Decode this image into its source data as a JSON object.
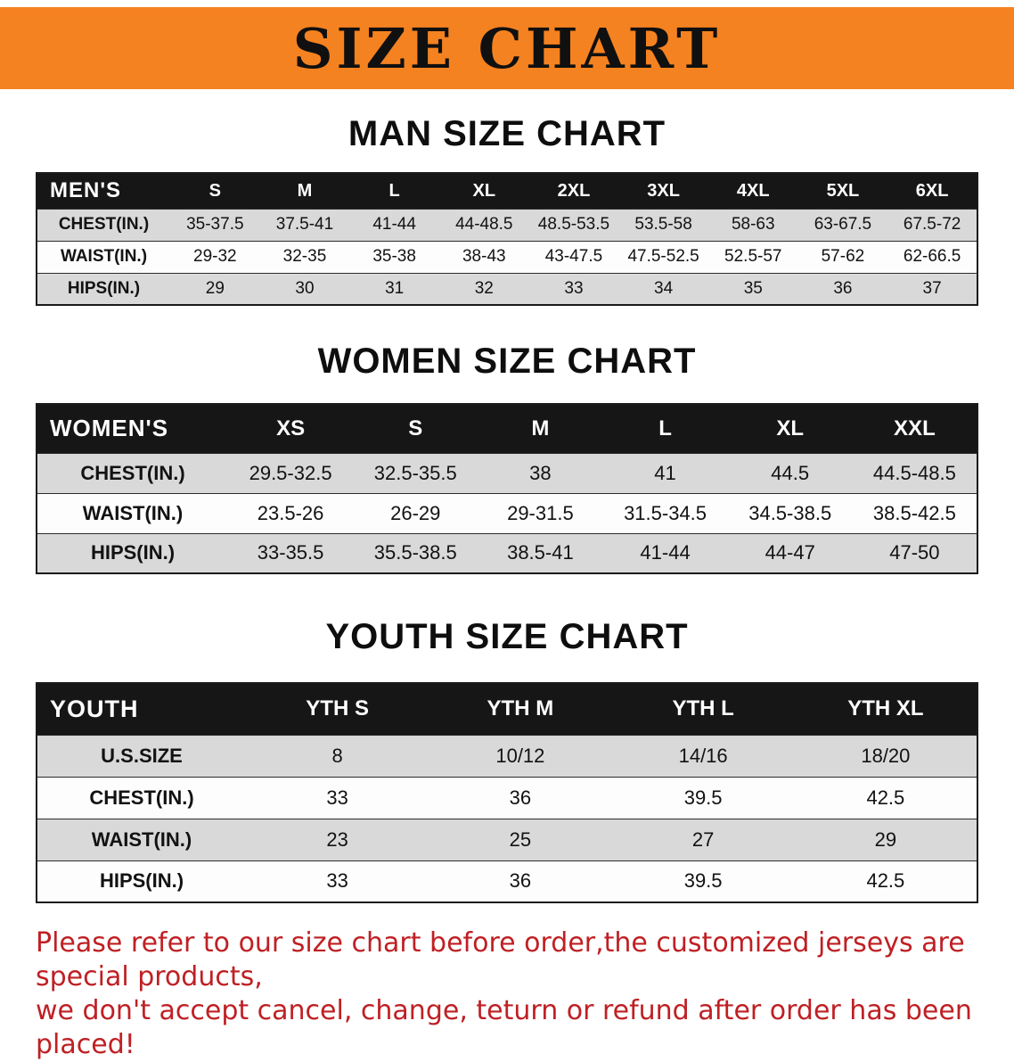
{
  "banner": {
    "title": "SIZE CHART"
  },
  "men": {
    "heading": "MAN SIZE CHART",
    "table": {
      "header": [
        "MEN'S",
        "S",
        "M",
        "L",
        "XL",
        "2XL",
        "3XL",
        "4XL",
        "5XL",
        "6XL"
      ],
      "rows": [
        [
          "CHEST(IN.)",
          "35-37.5",
          "37.5-41",
          "41-44",
          "44-48.5",
          "48.5-53.5",
          "53.5-58",
          "58-63",
          "63-67.5",
          "67.5-72"
        ],
        [
          "WAIST(IN.)",
          "29-32",
          "32-35",
          "35-38",
          "38-43",
          "43-47.5",
          "47.5-52.5",
          "52.5-57",
          "57-62",
          "62-66.5"
        ],
        [
          "HIPS(IN.)",
          "29",
          "30",
          "31",
          "32",
          "33",
          "34",
          "35",
          "36",
          "37"
        ]
      ]
    }
  },
  "women": {
    "heading": "WOMEN SIZE CHART",
    "table": {
      "header": [
        "WOMEN'S",
        "XS",
        "S",
        "M",
        "L",
        "XL",
        "XXL"
      ],
      "rows": [
        [
          "CHEST(IN.)",
          "29.5-32.5",
          "32.5-35.5",
          "38",
          "41",
          "44.5",
          "44.5-48.5"
        ],
        [
          "WAIST(IN.)",
          "23.5-26",
          "26-29",
          "29-31.5",
          "31.5-34.5",
          "34.5-38.5",
          "38.5-42.5"
        ],
        [
          "HIPS(IN.)",
          "33-35.5",
          "35.5-38.5",
          "38.5-41",
          "41-44",
          "44-47",
          "47-50"
        ]
      ]
    }
  },
  "youth": {
    "heading": "YOUTH SIZE CHART",
    "table": {
      "header": [
        "YOUTH",
        "YTH S",
        "YTH M",
        "YTH L",
        "YTH XL"
      ],
      "rows": [
        [
          "U.S.SIZE",
          "8",
          "10/12",
          "14/16",
          "18/20"
        ],
        [
          "CHEST(IN.)",
          "33",
          "36",
          "39.5",
          "42.5"
        ],
        [
          "WAIST(IN.)",
          "23",
          "25",
          "27",
          "29"
        ],
        [
          "HIPS(IN.)",
          "33",
          "36",
          "39.5",
          "42.5"
        ]
      ]
    }
  },
  "disclaimer": {
    "line1": "Please refer to our size chart before order,the customized jerseys are special products,",
    "line2": "we don't accept cancel, change, teturn or refund after order has been placed!"
  },
  "colors": {
    "banner_bg": "#F58220",
    "table_header_bg": "#161616",
    "row_alt_bg": "#d9d9d9",
    "disclaimer_red": "#bf2024"
  }
}
